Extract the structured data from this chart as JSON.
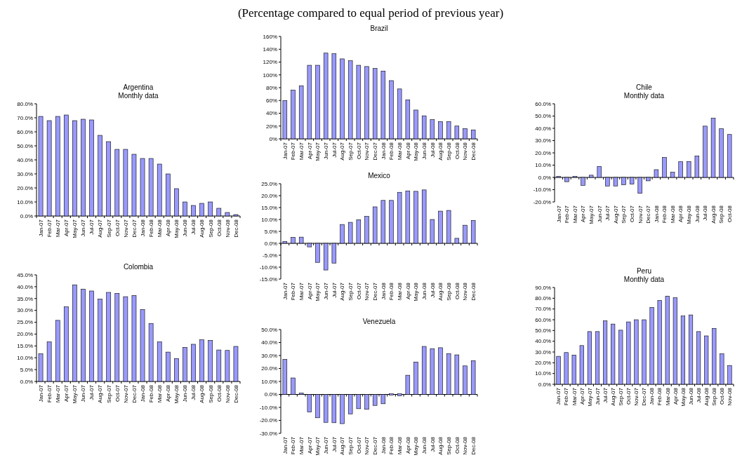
{
  "chart_data": [
    {
      "type": "bar",
      "title": "Brazil",
      "annotations": [
        "(Percentage compared to equal period of previous year)"
      ],
      "categories": [
        "Jan-07",
        "Feb-07",
        "Mar-07",
        "Apr-07",
        "May-07",
        "Jun-07",
        "Jul-07",
        "Aug-07",
        "Sep-07",
        "Oct-07",
        "Nov-07",
        "Dec-07",
        "Jan-08",
        "Feb-08",
        "Mar-08",
        "Apr-08",
        "May-08",
        "Jun-08",
        "Jul-08",
        "Aug-08",
        "Sep-08",
        "Oct-08",
        "Nov-08",
        "Dec-08"
      ],
      "values": [
        60,
        76,
        83,
        115,
        115,
        134,
        133,
        125,
        122,
        115,
        113,
        110,
        106,
        91,
        78,
        61,
        45,
        36,
        30,
        27,
        27,
        20,
        16,
        14
      ],
      "color": "#9999ff",
      "ylim": [
        0,
        160
      ],
      "yticks": [
        {
          "value": 0,
          "label": "0%"
        },
        {
          "value": 20,
          "label": "20%"
        },
        {
          "value": 40,
          "label": "40%"
        },
        {
          "value": 60,
          "label": "60%"
        },
        {
          "value": 80,
          "label": "80%"
        },
        {
          "value": 100,
          "label": "100%"
        },
        {
          "value": 120,
          "label": "120%"
        },
        {
          "value": 140,
          "label": "140%"
        },
        {
          "value": 160,
          "label": "160%"
        }
      ]
    },
    {
      "type": "bar",
      "title": "Argentina",
      "subtitle": "Monthly data",
      "categories": [
        "Jan-07",
        "Feb-07",
        "Mar-07",
        "Apr-07",
        "May-07",
        "Jun-07",
        "Jul-07",
        "Aug-07",
        "Sep-07",
        "Oct-07",
        "Nov-07",
        "Dec-07",
        "Jan-08",
        "Feb-08",
        "Mar-08",
        "Apr-08",
        "May-08",
        "Jun-08",
        "Jul-08",
        "Aug-08",
        "Sep-08",
        "Oct-08",
        "Nov-08",
        "Dec-08"
      ],
      "values": [
        71,
        68,
        71,
        72,
        68,
        69,
        68.5,
        57.5,
        53,
        47.5,
        47.5,
        44,
        41,
        41,
        37,
        30,
        19.5,
        10,
        7.5,
        9,
        10,
        5.5,
        2.5,
        0.5
      ],
      "color": "#9999ff",
      "ylim": [
        0,
        80
      ],
      "yticks": [
        {
          "value": 0,
          "label": "0.0%"
        },
        {
          "value": 10,
          "label": "10.0%"
        },
        {
          "value": 20,
          "label": "20.0%"
        },
        {
          "value": 30,
          "label": "30.0%"
        },
        {
          "value": 40,
          "label": "40.0%"
        },
        {
          "value": 50,
          "label": "50.0%"
        },
        {
          "value": 60,
          "label": "60.0%"
        },
        {
          "value": 70,
          "label": "70.0%"
        },
        {
          "value": 80,
          "label": "80.0%"
        }
      ]
    },
    {
      "type": "bar",
      "title": "Chile",
      "subtitle": "Monthly data",
      "categories": [
        "Jan-07",
        "Feb-07",
        "Mar-07",
        "Apr-07",
        "May-07",
        "Jun-07",
        "Jul-07",
        "Aug-07",
        "Sep-07",
        "Oct-07",
        "Nov-07",
        "Dec-07",
        "Jan-08",
        "Feb-08",
        "Mar-08",
        "Apr-08",
        "May-08",
        "Jun-08",
        "Jul-08",
        "Aug-08",
        "Sep-08",
        "Oct-08"
      ],
      "values": [
        0.3,
        -3.5,
        0.3,
        -6.5,
        1.8,
        9,
        -7,
        -7,
        -6,
        -5.5,
        -13,
        -2.8,
        6.3,
        16.2,
        4.2,
        12.8,
        13,
        17.5,
        41.8,
        48.2,
        39.7,
        35
      ],
      "color": "#9999ff",
      "ylim": [
        -20,
        60
      ],
      "yticks": [
        {
          "value": -20,
          "label": "-20.0%"
        },
        {
          "value": -10,
          "label": "-10.0%"
        },
        {
          "value": 0,
          "label": "0.0%"
        },
        {
          "value": 10,
          "label": "10.0%"
        },
        {
          "value": 20,
          "label": "20.0%"
        },
        {
          "value": 30,
          "label": "30.0%"
        },
        {
          "value": 40,
          "label": "40.0%"
        },
        {
          "value": 50,
          "label": "50.0%"
        },
        {
          "value": 60,
          "label": "60.0%"
        }
      ]
    },
    {
      "type": "bar",
      "title": "Mexico",
      "categories": [
        "Jan-07",
        "Feb-07",
        "Mar-07",
        "Apr-07",
        "May-07",
        "Jun-07",
        "Jul-07",
        "Aug-07",
        "Sep-07",
        "Oct-07",
        "Nov-07",
        "Dec-07",
        "Jan-08",
        "Feb-08",
        "Mar-08",
        "Apr-08",
        "May-08",
        "Jun-08",
        "Jul-08",
        "Aug-08",
        "Sep-08",
        "Oct-08",
        "Nov-08",
        "Dec-08"
      ],
      "values": [
        0.8,
        2.5,
        2.6,
        -1.5,
        -8,
        -11.2,
        -8.3,
        7.9,
        8.8,
        9.9,
        11.3,
        15.3,
        18,
        18,
        21.4,
        22,
        21.8,
        22.4,
        10,
        13.5,
        13.8,
        2.1,
        7.6,
        9.6
      ],
      "color": "#9999ff",
      "ylim": [
        -15,
        25
      ],
      "yticks": [
        {
          "value": -15,
          "label": "-15.0%"
        },
        {
          "value": -10,
          "label": "-10.0%"
        },
        {
          "value": -5,
          "label": "-5.0%"
        },
        {
          "value": 0,
          "label": "0.0%"
        },
        {
          "value": 5,
          "label": "5.0%"
        },
        {
          "value": 10,
          "label": "10.0%"
        },
        {
          "value": 15,
          "label": "15.0%"
        },
        {
          "value": 20,
          "label": "20.0%"
        },
        {
          "value": 25,
          "label": "25.0%"
        }
      ]
    },
    {
      "type": "bar",
      "title": "Colombia",
      "categories": [
        "Jan-07",
        "Feb-07",
        "Mar-07",
        "Apr-07",
        "May-07",
        "Jun-07",
        "Jul-07",
        "Aug-07",
        "Sep-07",
        "Oct-07",
        "Nov-07",
        "Dec-07",
        "Jan-08",
        "Feb-08",
        "Mar-08",
        "Apr-08",
        "May-08",
        "Jun-08",
        "Jul-08",
        "Aug-08",
        "Sep-08",
        "Oct-08",
        "Nov-08",
        "Dec-08"
      ],
      "values": [
        11.7,
        16.7,
        25.8,
        31.5,
        40.8,
        39,
        38.2,
        34.8,
        37.6,
        37.2,
        35.8,
        36.3,
        30.4,
        24.5,
        16.7,
        12.4,
        9.7,
        14.4,
        15.7,
        17.6,
        17.3,
        13.3,
        13.1,
        14.8
      ],
      "color": "#9999ff",
      "ylim": [
        0,
        45
      ],
      "yticks": [
        {
          "value": 0,
          "label": "0.0%"
        },
        {
          "value": 5,
          "label": "5.0%"
        },
        {
          "value": 10,
          "label": "10.0%"
        },
        {
          "value": 15,
          "label": "15.0%"
        },
        {
          "value": 20,
          "label": "20.0%"
        },
        {
          "value": 25,
          "label": "25.0%"
        },
        {
          "value": 30,
          "label": "30.0%"
        },
        {
          "value": 35,
          "label": "35.0%"
        },
        {
          "value": 40,
          "label": "40.0%"
        },
        {
          "value": 45,
          "label": "45.0%"
        }
      ]
    },
    {
      "type": "bar",
      "title": "Peru",
      "subtitle": "Monthly data",
      "categories": [
        "Jan-07",
        "Feb-07",
        "Mar-07",
        "Apr-07",
        "May-07",
        "Jun-07",
        "Jul-07",
        "Aug-07",
        "Sep-07",
        "Oct-07",
        "Nov-07",
        "Dec-07",
        "Jan-08",
        "Feb-08",
        "Mar-08",
        "Apr-08",
        "May-08",
        "Jun-08",
        "Jul-08",
        "Aug-08",
        "Sep-08",
        "Oct-08",
        "Nov-08"
      ],
      "values": [
        26,
        29.5,
        27.2,
        36,
        49,
        49,
        59,
        56,
        50.3,
        58,
        60,
        60,
        71.5,
        78,
        82,
        80.5,
        63.5,
        64.5,
        49,
        45,
        52,
        28.3,
        17.5
      ],
      "color": "#9999ff",
      "ylim": [
        0,
        90
      ],
      "yticks": [
        {
          "value": 0,
          "label": "0.0%"
        },
        {
          "value": 10,
          "label": "10.0%"
        },
        {
          "value": 20,
          "label": "20.0%"
        },
        {
          "value": 30,
          "label": "30.0%"
        },
        {
          "value": 40,
          "label": "40.0%"
        },
        {
          "value": 50,
          "label": "50.0%"
        },
        {
          "value": 60,
          "label": "60.0%"
        },
        {
          "value": 70,
          "label": "70.0%"
        },
        {
          "value": 80,
          "label": "80.0%"
        },
        {
          "value": 90,
          "label": "90.0%"
        }
      ]
    },
    {
      "type": "bar",
      "title": "Venezuela",
      "categories": [
        "Jan-07",
        "Feb-07",
        "Mar-07",
        "Apr-07",
        "May-07",
        "Jun-07",
        "Jul-07",
        "Aug-07",
        "Sep-07",
        "Oct-07",
        "Nov-07",
        "Dec-07",
        "Jan-08",
        "Feb-08",
        "Mar-08",
        "Apr-08",
        "May-08",
        "Jun-08",
        "Jul-08",
        "Aug-08",
        "Sep-08",
        "Oct-08",
        "Nov-08",
        "Dec-08"
      ],
      "values": [
        27,
        12.7,
        0.5,
        -13.5,
        -18,
        -21.5,
        -21.8,
        -22.5,
        -15,
        -11,
        -11.5,
        -8.5,
        -7.2,
        -0.5,
        -1,
        14.8,
        25,
        37,
        35.3,
        36,
        31.5,
        30.5,
        22,
        26
      ],
      "color": "#9999ff",
      "ylim": [
        -30,
        50
      ],
      "yticks": [
        {
          "value": -30,
          "label": "-30.0%"
        },
        {
          "value": -20,
          "label": "-20.0%"
        },
        {
          "value": -10,
          "label": "-10.0%"
        },
        {
          "value": 0,
          "label": "0.0%"
        },
        {
          "value": 10,
          "label": "10.0%"
        },
        {
          "value": 20,
          "label": "20.0%"
        },
        {
          "value": 30,
          "label": "30.0%"
        },
        {
          "value": 40,
          "label": "40.0%"
        },
        {
          "value": 50,
          "label": "50.0%"
        }
      ]
    }
  ]
}
